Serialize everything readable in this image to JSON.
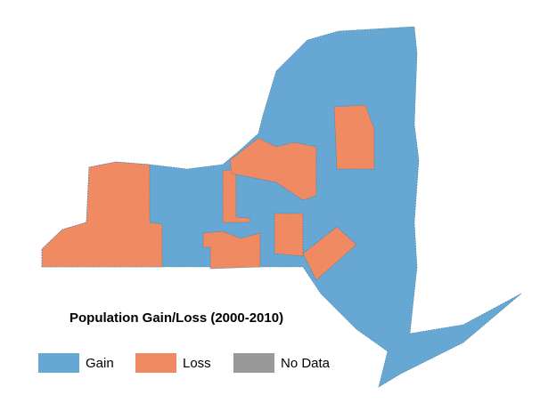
{
  "title": "Population Gain/Loss (2000-2010)",
  "legend": [
    {
      "label": "Gain",
      "color": "#66a8d3"
    },
    {
      "label": "Loss",
      "color": "#ef8a62"
    },
    {
      "label": "No Data",
      "color": "#999999"
    }
  ]
}
